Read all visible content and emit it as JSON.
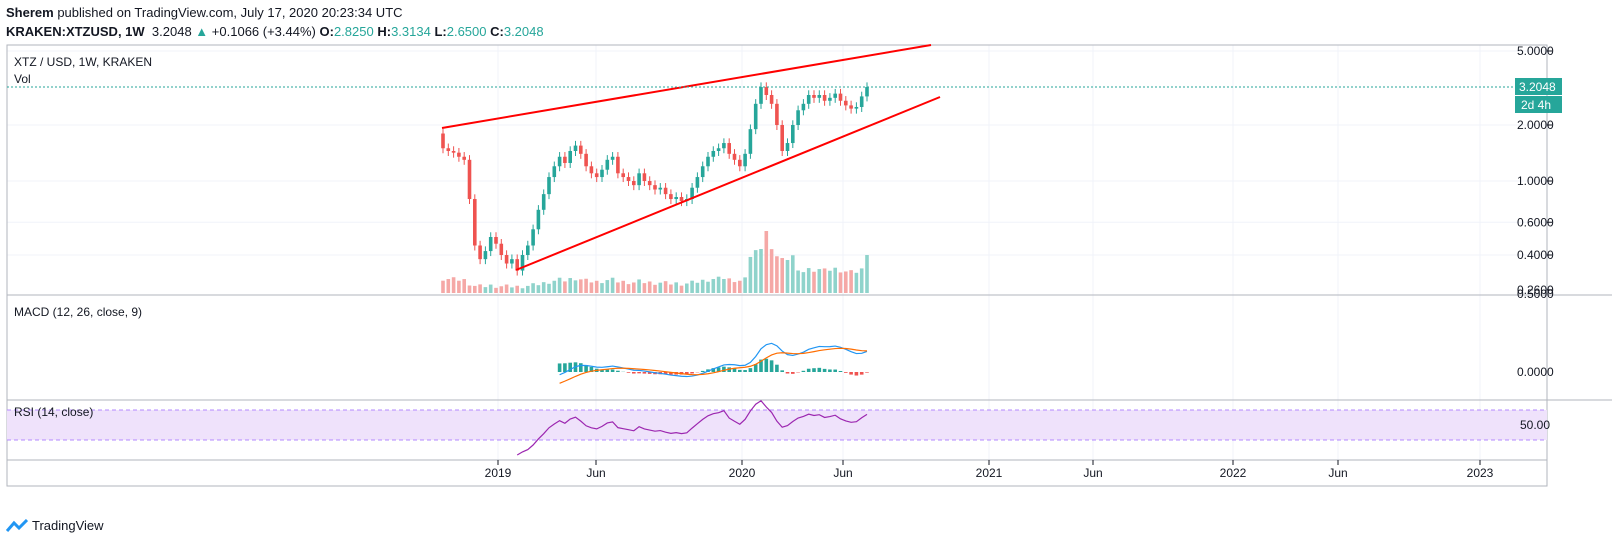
{
  "header": {
    "author": "Sherem",
    "published_text": "published on TradingView.com, July 17, 2020 20:23:34 UTC",
    "symbol": "KRAKEN:XTZUSD, 1W",
    "last": "3.2048",
    "change": "+0.1066 (+3.44%)",
    "o_label": "O:",
    "o": "2.8250",
    "h_label": "H:",
    "h": "3.3134",
    "l_label": "L:",
    "l": "2.6500",
    "c_label": "C:",
    "c": "3.2048"
  },
  "panes": {
    "main_title": "XTZ / USD, 1W, KRAKEN",
    "vol_label": "Vol",
    "macd_label": "MACD (12, 26, close, 9)",
    "rsi_label": "RSI (14, close)"
  },
  "price_badge": {
    "price": "3.2048",
    "countdown": "2d 4h"
  },
  "footer": {
    "brand": "TradingView"
  },
  "colors": {
    "up": "#26a69a",
    "down": "#ef5350",
    "trendline": "#ff0000",
    "macd": "#2196f3",
    "signal": "#ff6d00",
    "rsi": "#9c27b0",
    "rsi_band": "#e9d5f7"
  },
  "chart_data": [
    {
      "type": "candlestick",
      "pane": "price",
      "scale": "log",
      "y_ticks": [
        "5.0000",
        "2.0000",
        "1.0000",
        "0.6000",
        "0.4000",
        "0.2600"
      ],
      "x_ticks": [
        "2019",
        "Jun",
        "2020",
        "Jun",
        "2021",
        "Jun",
        "2022",
        "Jun",
        "2023"
      ],
      "approx_weekly_close": [
        1.5,
        1.45,
        1.42,
        1.35,
        1.3,
        0.8,
        0.45,
        0.38,
        0.42,
        0.5,
        0.46,
        0.4,
        0.36,
        0.38,
        0.33,
        0.4,
        0.45,
        0.55,
        0.7,
        0.85,
        1.05,
        1.2,
        1.35,
        1.25,
        1.45,
        1.55,
        1.4,
        1.2,
        1.1,
        1.05,
        1.15,
        1.3,
        1.35,
        1.1,
        1.05,
        1.0,
        0.95,
        1.1,
        1.0,
        0.95,
        0.9,
        0.92,
        0.85,
        0.8,
        0.82,
        0.78,
        0.8,
        0.92,
        1.05,
        1.2,
        1.35,
        1.45,
        1.5,
        1.6,
        1.4,
        1.3,
        1.2,
        1.4,
        1.9,
        2.6,
        3.2,
        2.9,
        2.6,
        2.0,
        1.45,
        1.6,
        2.0,
        2.4,
        2.6,
        2.9,
        2.8,
        2.9,
        2.7,
        2.8,
        2.95,
        2.7,
        2.55,
        2.45,
        2.5,
        2.85,
        3.2
      ],
      "trendlines": [
        {
          "from": [
            1.9,
            "2018-11"
          ],
          "to": [
            5.1,
            "2020-11"
          ]
        },
        {
          "from": [
            0.35,
            "2019-02"
          ],
          "to": [
            2.7,
            "2020-12"
          ]
        }
      ]
    },
    {
      "type": "bar",
      "pane": "volume",
      "series": [
        {
          "name": "Vol"
        }
      ]
    },
    {
      "type": "line",
      "pane": "macd",
      "y_ticks": [
        "0.5000",
        "0.0000"
      ],
      "series": [
        {
          "name": "MACD"
        },
        {
          "name": "Signal"
        },
        {
          "name": "Histogram"
        }
      ]
    },
    {
      "type": "line",
      "pane": "rsi",
      "y_ticks": [
        "50.00"
      ],
      "series": [
        {
          "name": "RSI"
        }
      ]
    }
  ]
}
